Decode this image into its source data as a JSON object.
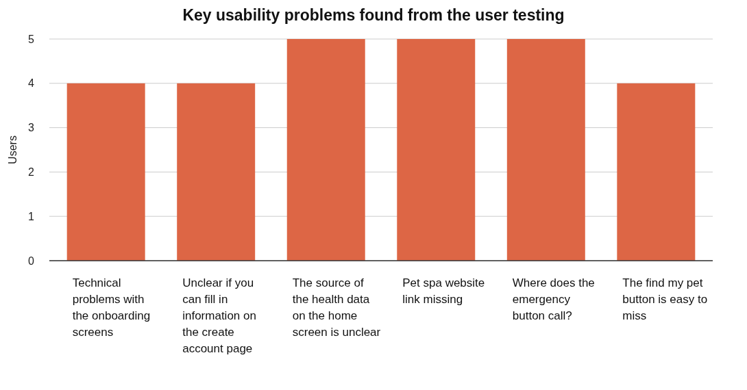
{
  "chart_data": {
    "type": "bar",
    "title": "Key usability problems found from the user testing",
    "ylabel": "Users",
    "categories": [
      "Technical problems with the onboarding screens",
      "Unclear if you can fill in information on the create account page",
      "The source of the health data on the home screen is unclear",
      "Pet spa website link missing",
      "Where does the emergency button call?",
      "The find my pet button is easy to miss"
    ],
    "values": [
      4,
      4,
      5,
      5,
      5,
      4
    ],
    "color": "#dd6645",
    "ylim": [
      0,
      5
    ],
    "yticks": [
      0,
      1,
      2,
      3,
      4,
      5
    ],
    "grid": "y"
  }
}
